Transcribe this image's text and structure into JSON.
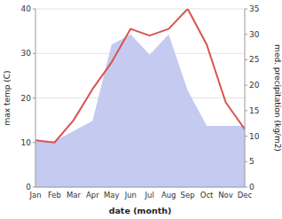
{
  "chart_data": {
    "type": "line",
    "xlabel": "date (month)",
    "ylabel": "max temp (C)",
    "y2label": "med. precipitation (kg/m2)",
    "categories": [
      "Jan",
      "Feb",
      "Mar",
      "Apr",
      "May",
      "Jun",
      "Jul",
      "Aug",
      "Sep",
      "Oct",
      "Nov",
      "Dec"
    ],
    "series": [
      {
        "type": "area",
        "color": "#c5caf0",
        "axis": "y2",
        "values": [
          9,
          9,
          11,
          13,
          28,
          30,
          26,
          30,
          19,
          12,
          12,
          12
        ]
      },
      {
        "type": "line",
        "color": "#d9534f",
        "values": [
          10.5,
          10.0,
          15.0,
          22.0,
          28.0,
          35.5,
          34.0,
          35.5,
          40.0,
          32.0,
          19.0,
          13.0
        ]
      }
    ],
    "ylim": [
      0,
      40
    ],
    "yticks": [
      0,
      10,
      20,
      30,
      40
    ],
    "y2lim": [
      0,
      35
    ],
    "y2ticks": [
      0,
      5,
      10,
      15,
      20,
      25,
      30,
      35
    ],
    "grid": true
  }
}
